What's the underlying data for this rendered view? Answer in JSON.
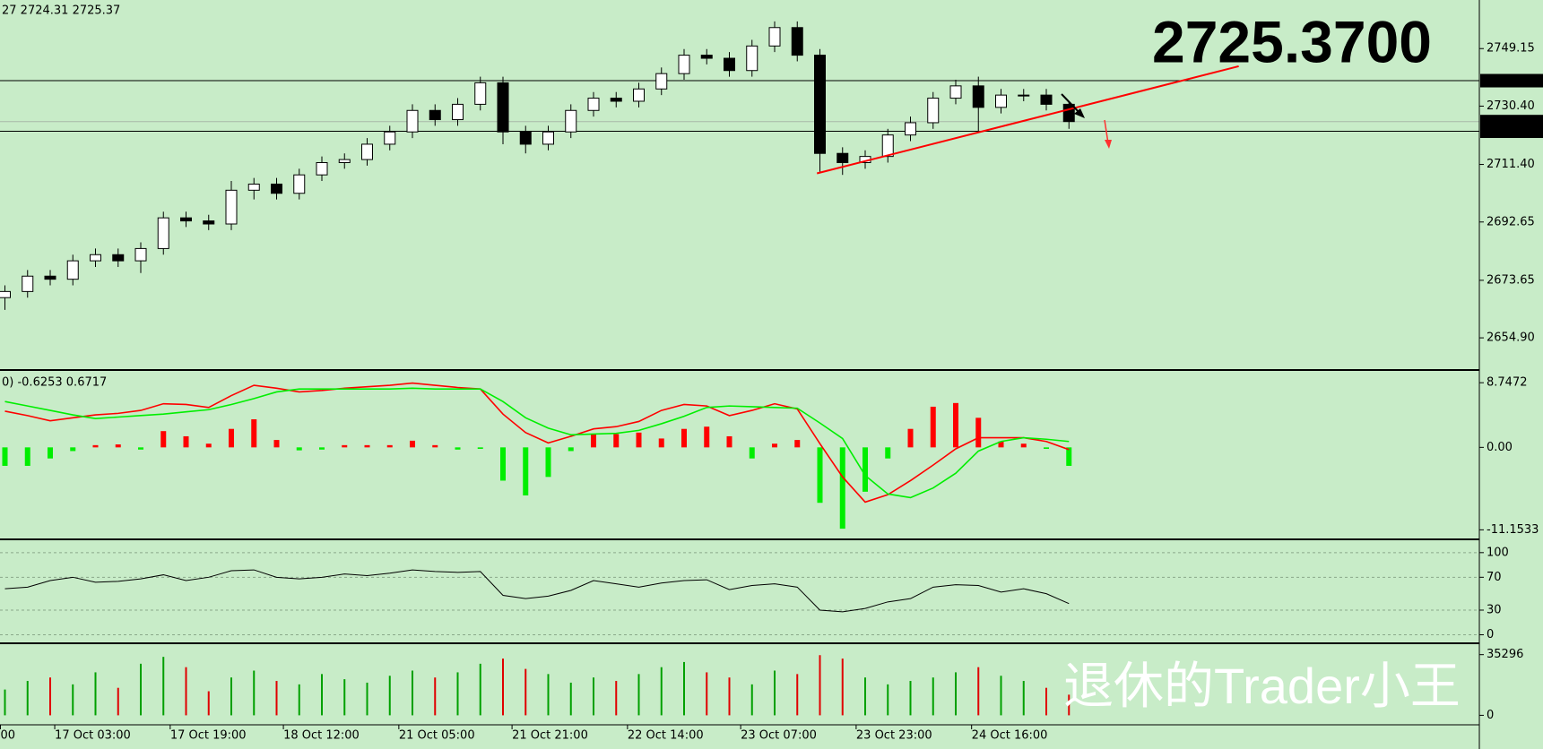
{
  "watermark": "退休的Trader小王",
  "chart_data": [
    {
      "type": "candlestick",
      "title": "27 2724.31 2725.37",
      "annotation": "2725.3700",
      "annotation_color": "#77f000",
      "up_color": "#ffffff",
      "down_color": "#000000",
      "open": [
        2668,
        2670,
        2675,
        2674,
        2680,
        2682,
        2680,
        2684,
        2694,
        2693,
        2692,
        2703,
        2705,
        2702,
        2708,
        2712,
        2713,
        2718,
        2722,
        2729,
        2726,
        2731,
        2738,
        2722,
        2718,
        2722,
        2729,
        2733,
        2732,
        2736,
        2741,
        2747,
        2746,
        2742,
        2750,
        2756,
        2747,
        2715,
        2712,
        2714,
        2721,
        2725,
        2733,
        2737,
        2730,
        2734,
        2734,
        2731
      ],
      "high": [
        2672,
        2677,
        2677,
        2682,
        2684,
        2684,
        2686,
        2696,
        2696,
        2695,
        2706,
        2707,
        2707,
        2710,
        2714,
        2715,
        2720,
        2724,
        2731,
        2731,
        2733,
        2740,
        2740,
        2724,
        2724,
        2731,
        2735,
        2735,
        2738,
        2743,
        2749,
        2749,
        2748,
        2752,
        2758,
        2758,
        2749,
        2717,
        2716,
        2723,
        2727,
        2735,
        2739,
        2740,
        2736,
        2736,
        2736,
        2732
      ],
      "low": [
        2664,
        2668,
        2672,
        2672,
        2678,
        2678,
        2676,
        2682,
        2691,
        2690,
        2690,
        2700,
        2700,
        2700,
        2706,
        2710,
        2711,
        2716,
        2720,
        2724,
        2724,
        2729,
        2718,
        2715,
        2716,
        2720,
        2727,
        2730,
        2730,
        2734,
        2739,
        2744,
        2740,
        2740,
        2748,
        2745,
        2709,
        2708,
        2710,
        2712,
        2719,
        2723,
        2731,
        2722,
        2728,
        2732,
        2729,
        2723
      ],
      "close": [
        2670,
        2675,
        2674,
        2680,
        2682,
        2680,
        2684,
        2694,
        2693,
        2692,
        2703,
        2705,
        2702,
        2708,
        2712,
        2713,
        2718,
        2722,
        2729,
        2726,
        2731,
        2738,
        2722,
        2718,
        2722,
        2729,
        2733,
        2732,
        2736,
        2741,
        2747,
        2746,
        2742,
        2750,
        2756,
        2747,
        2715,
        2712,
        2714,
        2721,
        2725,
        2733,
        2737,
        2730,
        2734,
        2734,
        2731,
        2725.37
      ],
      "ylim": [
        2645,
        2764.4
      ],
      "yticks": [
        2749.15,
        {
          "value": 2730.4,
          "label": "2730.40"
        },
        {
          "value": 2711.4,
          "label": "2711.40"
        },
        2692.65,
        2673.65,
        {
          "value": 2654.9,
          "label": "2654.90"
        }
      ],
      "hlines": [
        {
          "value": 2738.7,
          "label": "2738.70"
        },
        {
          "value": 2722.21,
          "label": "2722.21"
        }
      ],
      "current": {
        "value": 2725.37,
        "label": "2725.37"
      },
      "trendline": {
        "color": "#ff0000",
        "x": [
          35.87,
          54.5
        ],
        "y": [
          2708.5,
          2743.4
        ]
      },
      "xticks": [
        {
          "value": -0.2,
          "label": "00"
        },
        {
          "value": 2.2,
          "label": "17 Oct 03:00"
        },
        {
          "value": 7.3,
          "label": "17 Oct 19:00"
        },
        {
          "value": 12.3,
          "label": "18 Oct 12:00"
        },
        {
          "value": 17.4,
          "label": "21 Oct 05:00"
        },
        {
          "value": 22.4,
          "label": "21 Oct 21:00"
        },
        {
          "value": 27.5,
          "label": "22 Oct 14:00"
        },
        {
          "value": 32.5,
          "label": "23 Oct 07:00"
        },
        {
          "value": 37.6,
          "label": "23 Oct 23:00"
        },
        {
          "value": 42.7,
          "label": "24 Oct 16:00"
        }
      ]
    },
    {
      "type": "macd",
      "label": "0) -0.6253 0.6717",
      "histogram": [
        -2.5,
        -2.5,
        -1.5,
        -0.5,
        0.3,
        0.4,
        -0.3,
        2.2,
        1.5,
        0.5,
        2.5,
        3.8,
        1.0,
        -0.4,
        -0.3,
        0.3,
        0.3,
        0.3,
        0.9,
        0.3,
        -0.3,
        -0.2,
        -4.5,
        -6.5,
        -4.0,
        -0.5,
        1.8,
        1.8,
        2.0,
        1.2,
        2.5,
        2.8,
        1.5,
        -1.5,
        0.5,
        1.0,
        -7.5,
        -11,
        -6,
        -1.5,
        2.5,
        5.5,
        6.0,
        4.0,
        0.8,
        0.5,
        -0.2,
        -2.5
      ],
      "macd": [
        4.9,
        4.3,
        3.6,
        4.0,
        4.4,
        4.6,
        5.0,
        5.9,
        5.8,
        5.4,
        7.0,
        8.4,
        8.0,
        7.5,
        7.7,
        8.0,
        8.2,
        8.4,
        8.7,
        8.4,
        8.1,
        7.9,
        4.5,
        2.0,
        0.6,
        1.5,
        2.5,
        2.8,
        3.5,
        5.0,
        5.8,
        5.6,
        4.3,
        5.0,
        5.9,
        5.2,
        0.5,
        -4.0,
        -7.4,
        -6.4,
        -4.5,
        -2.4,
        -0.2,
        1.3,
        1.3,
        1.3,
        0.8,
        -0.3
      ],
      "signal": [
        6.2,
        5.6,
        5.0,
        4.4,
        3.9,
        4.1,
        4.3,
        4.5,
        4.8,
        5.1,
        5.8,
        6.6,
        7.5,
        7.9,
        7.9,
        7.9,
        7.9,
        7.9,
        8.0,
        7.9,
        7.9,
        7.9,
        6.2,
        4.0,
        2.6,
        1.7,
        1.8,
        1.9,
        2.3,
        3.2,
        4.2,
        5.4,
        5.6,
        5.5,
        5.4,
        5.3,
        3.3,
        1.2,
        -3.8,
        -6.3,
        -6.8,
        -5.5,
        -3.5,
        -0.5,
        0.8,
        1.3,
        1.1,
        0.8
      ],
      "macd_color": "#ff0000",
      "signal_color": "#00ee00",
      "hist_up_color": "#ff0000",
      "hist_down_color": "#00ee00",
      "ylim": [
        -12.2,
        10.1
      ],
      "yticks": [
        8.7472,
        {
          "value": 0,
          "label": "0.00"
        },
        -11.1533
      ]
    },
    {
      "type": "line",
      "values": [
        56,
        58,
        66,
        70,
        64,
        65,
        68,
        73,
        66,
        70,
        78,
        79,
        70,
        68,
        70,
        74,
        72,
        75,
        79,
        77,
        76,
        77,
        48,
        44,
        47,
        54,
        66,
        62,
        58,
        63,
        66,
        67,
        55,
        60,
        62,
        58,
        30,
        28,
        32,
        40,
        44,
        58,
        61,
        60,
        52,
        56,
        50,
        38
      ],
      "color": "#000000",
      "ylim": [
        -8.2,
        112.9
      ],
      "yticks": [
        100,
        70,
        30,
        0
      ],
      "grid": true
    },
    {
      "type": "bar",
      "values": [
        15000,
        20000,
        22000,
        18000,
        25000,
        16000,
        30000,
        34000,
        28000,
        14000,
        22000,
        26000,
        20000,
        18000,
        24000,
        21000,
        19000,
        23000,
        26000,
        22000,
        25000,
        30000,
        33000,
        27000,
        24000,
        19000,
        22000,
        20000,
        24000,
        28000,
        31000,
        25000,
        22000,
        18000,
        26000,
        24000,
        35000,
        33000,
        22000,
        18000,
        20000,
        22000,
        25000,
        28000,
        23000,
        20000,
        16000,
        12000
      ],
      "up_color": "#00a000",
      "down_color": "#e00000",
      "ylim": [
        -4480,
        40340
      ],
      "yticks": [
        35296,
        0
      ]
    }
  ]
}
